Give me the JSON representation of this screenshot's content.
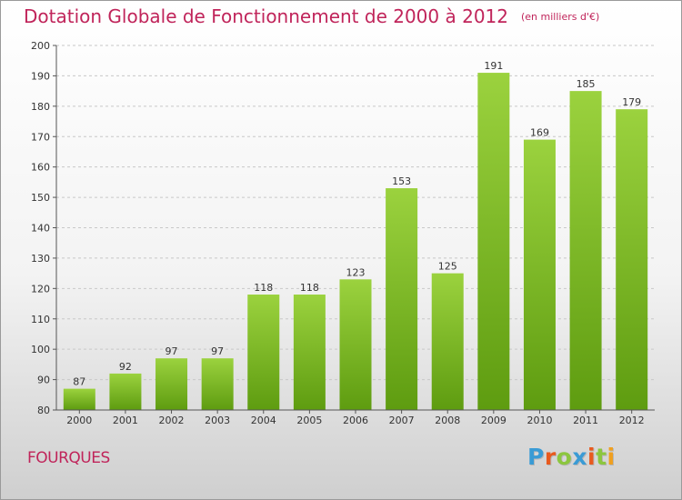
{
  "header": {
    "title": "Dotation Globale de Fonctionnement de 2000 à 2012",
    "unit": "(en milliers d'€)"
  },
  "footer": {
    "commune": "FOURQUES",
    "logo_letters": [
      "P",
      "r",
      "o",
      "x",
      "i",
      "t",
      "i"
    ],
    "logo_colors": [
      "#3a9bd5",
      "#e85a1e",
      "#8cc63f",
      "#3a9bd5",
      "#e85a1e",
      "#8cc63f",
      "#f0a020"
    ]
  },
  "colors": {
    "title": "#c0245a",
    "bar_top": "#9bd23e",
    "bar_bottom": "#5e9c10",
    "gridline": "#c8c8c8",
    "axis": "#555555"
  },
  "chart_data": {
    "type": "bar",
    "categories": [
      "2000",
      "2001",
      "2002",
      "2003",
      "2004",
      "2005",
      "2006",
      "2007",
      "2008",
      "2009",
      "2010",
      "2011",
      "2012"
    ],
    "values": [
      87,
      92,
      97,
      97,
      118,
      118,
      123,
      153,
      125,
      191,
      169,
      185,
      179
    ],
    "title": "Dotation Globale de Fonctionnement de 2000 à 2012",
    "subtitle": "(en milliers d'€)",
    "xlabel": "",
    "ylabel": "",
    "ylim": [
      80,
      200
    ],
    "yticks": [
      80,
      90,
      100,
      110,
      120,
      130,
      140,
      150,
      160,
      170,
      180,
      190,
      200
    ],
    "grid": true,
    "data_labels": true
  }
}
